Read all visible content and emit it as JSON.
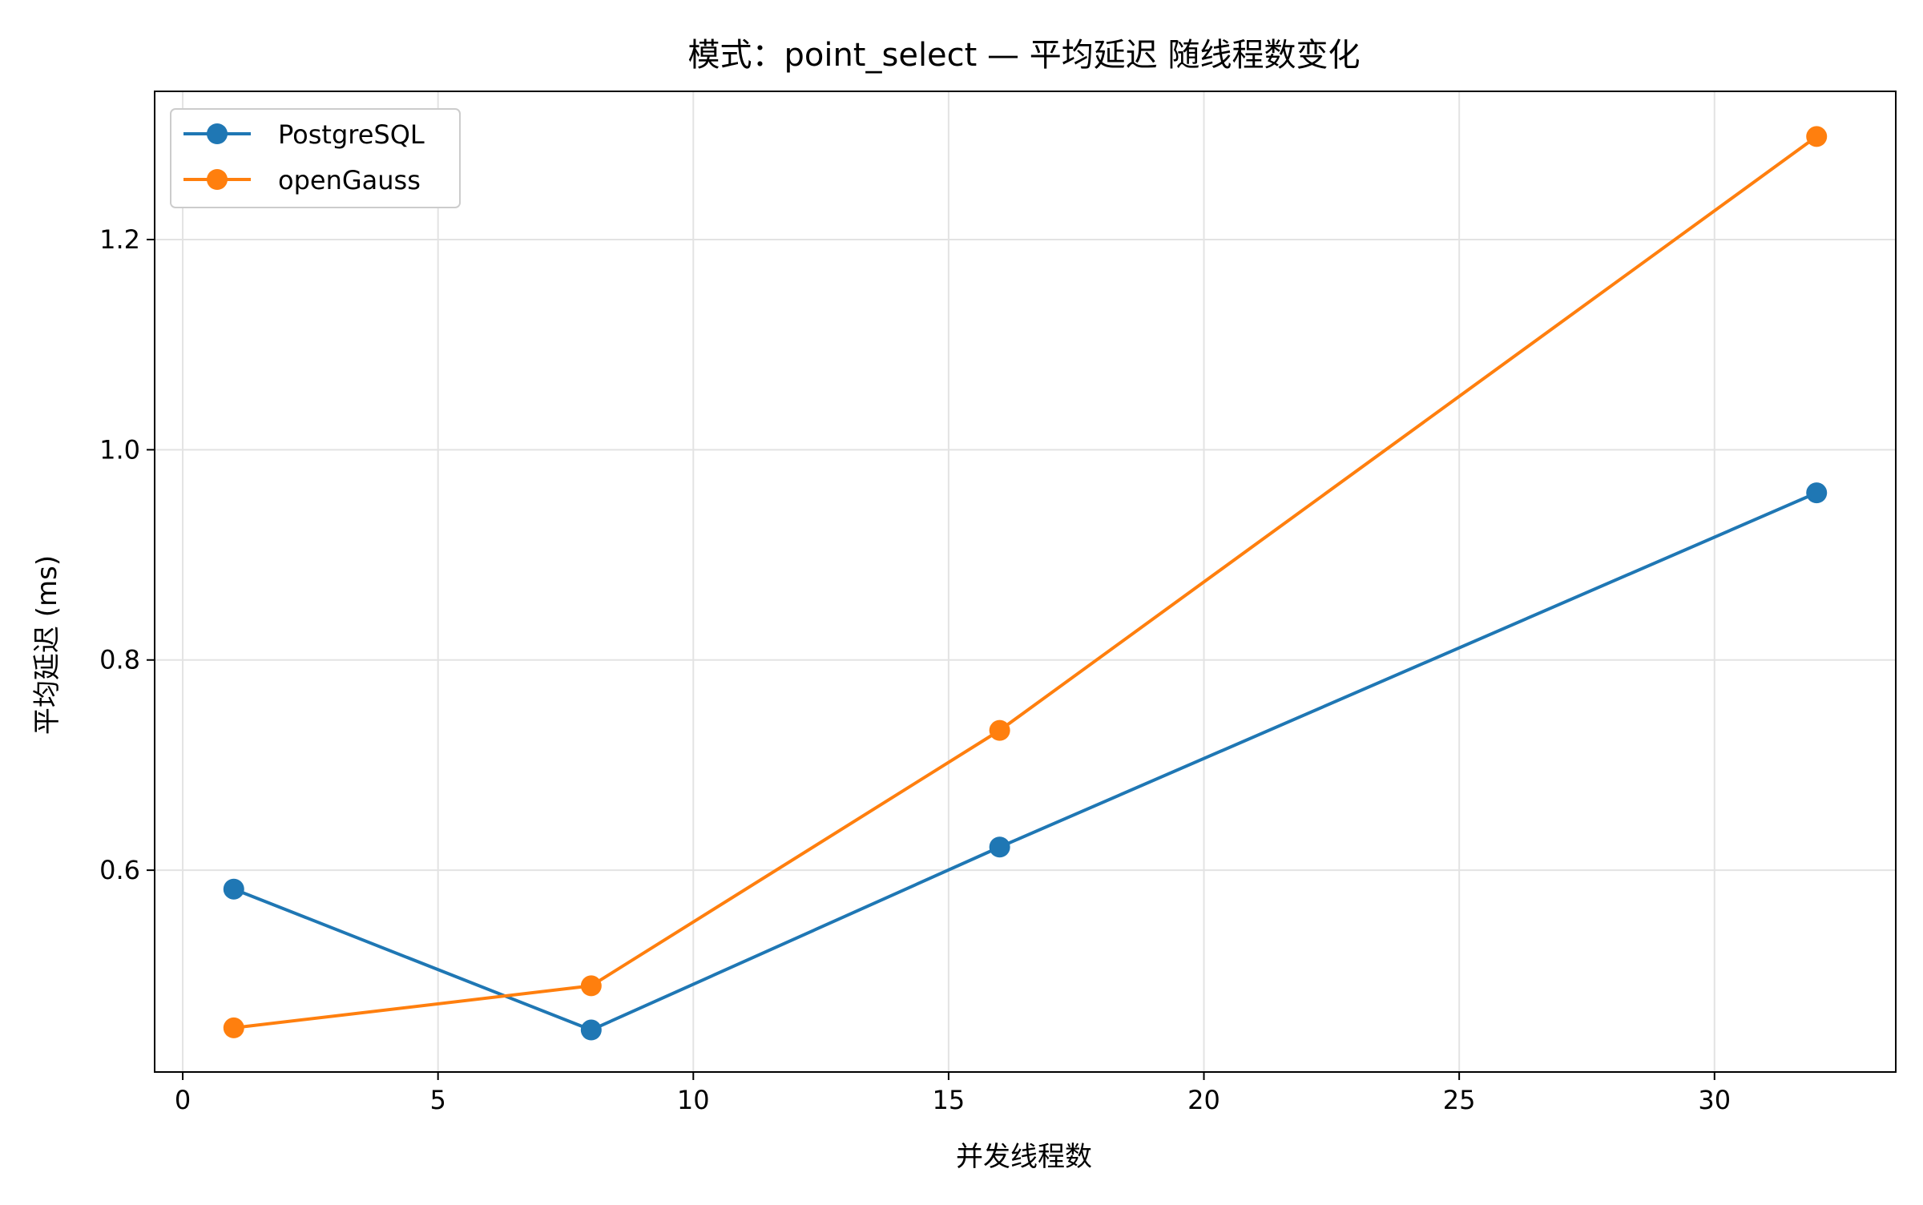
{
  "chart_data": {
    "type": "line",
    "title": "模式：point_select — 平均延迟 随线程数变化",
    "xlabel": "并发线程数",
    "ylabel": "平均延迟 (ms)",
    "xlim": [
      -0.55,
      33.55
    ],
    "ylim": [
      0.408,
      1.341
    ],
    "xticks": [
      0,
      5,
      10,
      15,
      20,
      25,
      30
    ],
    "yticks": [
      0.6,
      0.8,
      1.0,
      1.2
    ],
    "xtick_labels": [
      "0",
      "5",
      "10",
      "15",
      "20",
      "25",
      "30"
    ],
    "ytick_labels": [
      "0.6",
      "0.8",
      "1.0",
      "1.2"
    ],
    "grid": true,
    "legend_position": "top-left",
    "x": [
      1,
      8,
      16,
      32
    ],
    "series": [
      {
        "name": "PostgreSQL",
        "color": "#1f77b4",
        "values": [
          0.582,
          0.448,
          0.622,
          0.959
        ]
      },
      {
        "name": "openGauss",
        "color": "#ff7f0e",
        "values": [
          0.45,
          0.49,
          0.733,
          1.298
        ]
      }
    ]
  }
}
